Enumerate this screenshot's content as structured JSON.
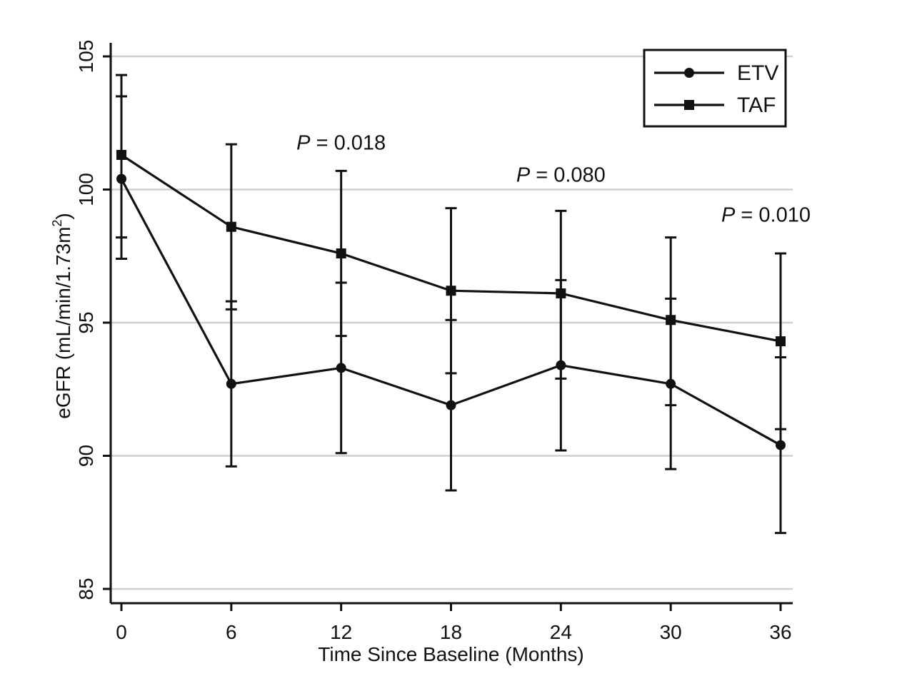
{
  "chart_data": {
    "type": "line",
    "title": "",
    "xlabel": "Time Since Baseline (Months)",
    "ylabel_main": "eGFR (mL/min/1.73m",
    "ylabel_sup": "2",
    "ylabel_close": ")",
    "xlim": [
      0,
      36
    ],
    "ylim": [
      84.5,
      105.5
    ],
    "x_ticks": [
      0,
      6,
      12,
      18,
      24,
      30,
      36
    ],
    "x_tick_labels": [
      "0",
      "6",
      "12",
      "18",
      "24",
      "30",
      "36"
    ],
    "y_ticks": [
      85,
      90,
      95,
      100,
      105
    ],
    "y_tick_labels": [
      "85",
      "90",
      "95",
      "100",
      "105"
    ],
    "grid": "horizontal",
    "legend_position": "top-right",
    "series": [
      {
        "name": "ETV",
        "marker": "circle",
        "x": [
          0,
          6,
          12,
          18,
          24,
          30,
          36
        ],
        "y": [
          100.4,
          92.7,
          93.3,
          91.9,
          93.4,
          92.7,
          90.4
        ],
        "lower": [
          97.4,
          89.6,
          90.1,
          88.7,
          90.2,
          89.5,
          87.1
        ],
        "upper": [
          103.5,
          95.8,
          96.5,
          95.1,
          96.6,
          95.9,
          93.7
        ]
      },
      {
        "name": "TAF",
        "marker": "square",
        "x": [
          0,
          6,
          12,
          18,
          24,
          30,
          36
        ],
        "y": [
          101.3,
          98.6,
          97.6,
          96.2,
          96.1,
          95.1,
          94.3
        ],
        "lower": [
          98.2,
          95.5,
          94.5,
          93.1,
          92.9,
          91.9,
          91.0
        ],
        "upper": [
          104.3,
          101.7,
          100.7,
          99.3,
          99.2,
          98.2,
          97.6
        ]
      }
    ],
    "annotations": [
      {
        "label": "P",
        "text": " = 0.018",
        "x": 12,
        "y": 101.5
      },
      {
        "label": "P",
        "text": " = 0.080",
        "x": 24,
        "y": 100.3
      },
      {
        "label": "P",
        "text": " = 0.010",
        "x": 35.2,
        "y": 98.8
      }
    ]
  }
}
